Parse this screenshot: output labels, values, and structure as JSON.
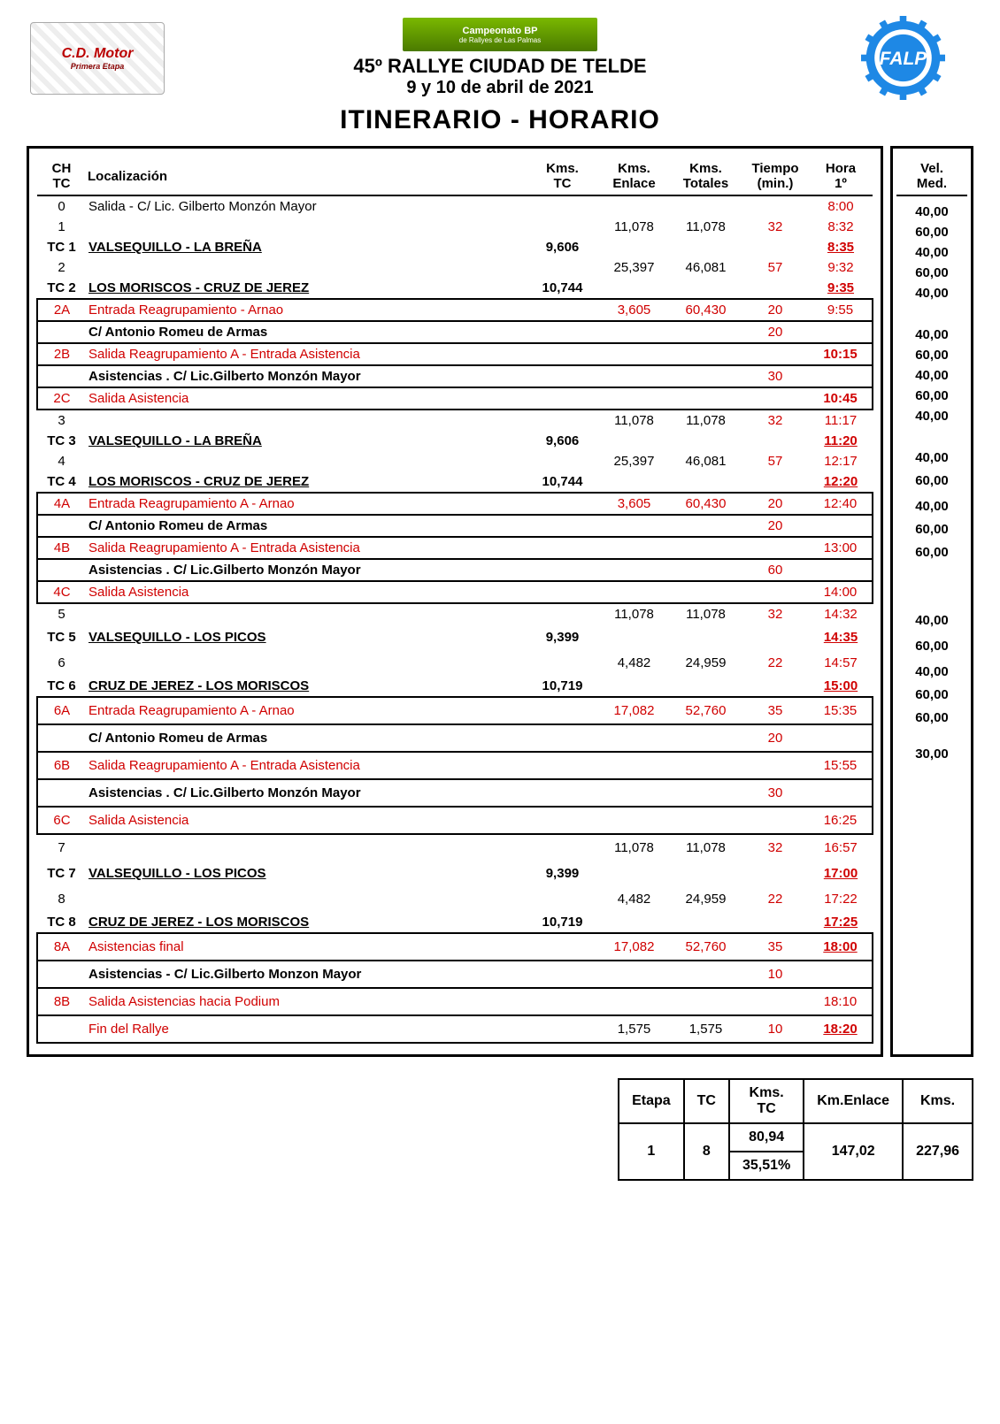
{
  "header": {
    "bp_line1": "Campeonato BP",
    "bp_line2": "de Rallyes de Las Palmas",
    "title1": "45º RALLYE CIUDAD DE TELDE",
    "title2": "9 y 10 de abril de 2021",
    "cdmotor_top": "C.D. Motor",
    "cdmotor_sub": "Primera Etapa",
    "big_title": "ITINERARIO - HORARIO"
  },
  "cols": {
    "ch": "CH TC",
    "loc": "Localización",
    "kmtc": "Kms. TC",
    "kmen": "Kms. Enlace",
    "kmtot": "Kms. Totales",
    "tiempo": "Tiempo (min.)",
    "hora": "Hora 1º",
    "vel": "Vel. Med."
  },
  "rows": [
    {
      "ch": "0",
      "loc": "Salida - C/ Lic. Gilberto Monzón Mayor",
      "hora": "8:00",
      "hora_cls": "red"
    },
    {
      "ch": "1",
      "kmen": "11,078",
      "kmtot": "11,078",
      "tiempo": "32",
      "tiempo_cls": "red",
      "hora": "8:32",
      "hora_cls": "red",
      "vel": "40,00"
    },
    {
      "ch": "TC 1",
      "ch_cls": "bold",
      "loc": "VALSEQUILLO - LA BREÑA",
      "loc_cls": "tc-stage",
      "kmtc": "9,606",
      "kmtc_cls": "bold",
      "hora": "8:35",
      "hora_cls": "red-ul",
      "vel": "60,00"
    },
    {
      "ch": "2",
      "kmen": "25,397",
      "kmtot": "46,081",
      "tiempo": "57",
      "tiempo_cls": "red",
      "hora": "9:32",
      "hora_cls": "red",
      "vel": "40,00"
    },
    {
      "ch": "TC 2",
      "ch_cls": "bold",
      "loc": "LOS MORISCOS - CRUZ DE JEREZ",
      "loc_cls": "tc-stage",
      "kmtc": "10,744",
      "kmtc_cls": "bold",
      "hora": "9:35",
      "hora_cls": "red-ul",
      "vel": "60,00",
      "border_bot": true
    },
    {
      "ch": "2A",
      "ch_cls": "red",
      "loc": "Entrada Reagrupamiento - Arnao",
      "loc_cls": "red",
      "kmen": "3,605",
      "kmen_cls": "red",
      "kmtot": "60,430",
      "kmtot_cls": "red",
      "tiempo": "20",
      "tiempo_cls": "red",
      "hora": "9:55",
      "hora_cls": "red",
      "vel": "40,00",
      "boxed": true,
      "box_top": true,
      "box_bot": true
    },
    {
      "loc": "C/ Antonio Romeu de Armas",
      "loc_cls": "bold",
      "tiempo": "20",
      "tiempo_cls": "red",
      "boxed": true,
      "box_bot": true
    },
    {
      "ch": "2B",
      "ch_cls": "red",
      "loc": "Salida Reagrupamiento A - Entrada Asistencia",
      "loc_cls": "red",
      "hora": "10:15",
      "hora_cls": "red bold",
      "boxed": true,
      "box_bot": true
    },
    {
      "loc": "Asistencias . C/ Lic.Gilberto Monzón Mayor",
      "loc_cls": "bold",
      "tiempo": "30",
      "tiempo_cls": "red",
      "boxed": true,
      "box_bot": true
    },
    {
      "ch": "2C",
      "ch_cls": "red",
      "loc": "Salida Asistencia",
      "loc_cls": "red",
      "hora": "10:45",
      "hora_cls": "red bold",
      "boxed": true,
      "box_bot": true
    },
    {
      "ch": "3",
      "kmen": "11,078",
      "kmtot": "11,078",
      "tiempo": "32",
      "tiempo_cls": "red",
      "hora": "11:17",
      "hora_cls": "red",
      "vel": "40,00"
    },
    {
      "ch": "TC 3",
      "ch_cls": "bold",
      "loc": "VALSEQUILLO - LA BREÑA",
      "loc_cls": "tc-stage",
      "kmtc": "9,606",
      "kmtc_cls": "bold",
      "hora": "11:20",
      "hora_cls": "red-ul",
      "vel": "60,00"
    },
    {
      "ch": "4",
      "kmen": "25,397",
      "kmtot": "46,081",
      "tiempo": "57",
      "tiempo_cls": "red",
      "hora": "12:17",
      "hora_cls": "red",
      "vel": "40,00"
    },
    {
      "ch": "TC 4",
      "ch_cls": "bold",
      "loc": "LOS MORISCOS - CRUZ DE JEREZ",
      "loc_cls": "tc-stage",
      "kmtc": "10,744",
      "kmtc_cls": "bold",
      "hora": "12:20",
      "hora_cls": "red-ul",
      "vel": "60,00",
      "border_bot": true
    },
    {
      "ch": "4A",
      "ch_cls": "red",
      "loc": "Entrada Reagrupamiento A -  Arnao",
      "loc_cls": "red",
      "kmen": "3,605",
      "kmen_cls": "red",
      "kmtot": "60,430",
      "kmtot_cls": "red",
      "tiempo": "20",
      "tiempo_cls": "red",
      "hora": "12:40",
      "hora_cls": "red",
      "vel": "40,00",
      "boxed": true,
      "box_top": true,
      "box_bot": true
    },
    {
      "loc": "C/ Antonio Romeu de Armas",
      "loc_cls": "bold",
      "tiempo": "20",
      "tiempo_cls": "red",
      "boxed": true,
      "box_bot": true
    },
    {
      "ch": "4B",
      "ch_cls": "red",
      "loc": "Salida Reagrupamiento A - Entrada Asistencia",
      "loc_cls": "red",
      "hora": "13:00",
      "hora_cls": "red",
      "boxed": true,
      "box_bot": true
    },
    {
      "loc": "Asistencias . C/ Lic.Gilberto Monzón Mayor",
      "loc_cls": "bold",
      "tiempo": "60",
      "tiempo_cls": "red",
      "boxed": true,
      "box_bot": true
    },
    {
      "ch": "4C",
      "ch_cls": "red",
      "loc": "Salida Asistencia",
      "loc_cls": "red",
      "hora": "14:00",
      "hora_cls": "red",
      "boxed": true,
      "box_bot": true
    },
    {
      "ch": "5",
      "kmen": "11,078",
      "kmtot": "11,078",
      "tiempo": "32",
      "tiempo_cls": "red",
      "hora": "14:32",
      "hora_cls": "red",
      "vel": "40,00"
    },
    {
      "ch": "TC 5",
      "ch_cls": "bold",
      "loc": "VALSEQUILLO - LOS PICOS",
      "loc_cls": "tc-stage",
      "kmtc": "9,399",
      "kmtc_cls": "bold",
      "hora": "14:35",
      "hora_cls": "red-ul",
      "vel": "60,00",
      "pad": true
    },
    {
      "ch": "6",
      "kmen": "4,482",
      "kmtot": "24,959",
      "tiempo": "22",
      "tiempo_cls": "red",
      "hora": "14:57",
      "hora_cls": "red",
      "vel": "40,00",
      "pad": true
    },
    {
      "ch": "TC 6",
      "ch_cls": "bold",
      "loc": "CRUZ DE JEREZ - LOS MORISCOS",
      "loc_cls": "tc-stage",
      "kmtc": "10,719",
      "kmtc_cls": "bold",
      "hora": "15:00",
      "hora_cls": "red-ul",
      "vel": "60,00",
      "border_bot": true
    },
    {
      "ch": "6A",
      "ch_cls": "red",
      "loc": "Entrada Reagrupamiento A -  Arnao",
      "loc_cls": "red",
      "kmen": "17,082",
      "kmen_cls": "red",
      "kmtot": "52,760",
      "kmtot_cls": "red",
      "tiempo": "35",
      "tiempo_cls": "red",
      "hora": "15:35",
      "hora_cls": "red",
      "vel": "60,00",
      "boxed": true,
      "box_top": true,
      "box_bot": true,
      "pad": true
    },
    {
      "loc": "C/ Antonio Romeu de Armas",
      "loc_cls": "bold",
      "tiempo": "20",
      "tiempo_cls": "red",
      "boxed": true,
      "box_bot": true,
      "pad": true
    },
    {
      "ch": "6B",
      "ch_cls": "red",
      "loc": "Salida Reagrupamiento A - Entrada Asistencia",
      "loc_cls": "red",
      "hora": "15:55",
      "hora_cls": "red",
      "boxed": true,
      "box_bot": true,
      "pad": true
    },
    {
      "loc": "Asistencias . C/ Lic.Gilberto Monzón Mayor",
      "loc_cls": "bold",
      "tiempo": "30",
      "tiempo_cls": "red",
      "boxed": true,
      "box_bot": true,
      "pad": true
    },
    {
      "ch": "6C",
      "ch_cls": "red",
      "loc": "Salida Asistencia",
      "loc_cls": "red",
      "hora": "16:25",
      "hora_cls": "red",
      "boxed": true,
      "box_bot": true,
      "pad": true
    },
    {
      "ch": "7",
      "kmen": "11,078",
      "kmtot": "11,078",
      "tiempo": "32",
      "tiempo_cls": "red",
      "hora": "16:57",
      "hora_cls": "red",
      "vel": "40,00",
      "pad": true
    },
    {
      "ch": "TC 7",
      "ch_cls": "bold",
      "loc": "VALSEQUILLO - LOS PICOS",
      "loc_cls": "tc-stage",
      "kmtc": "9,399",
      "kmtc_cls": "bold",
      "hora": "17:00",
      "hora_cls": "red-ul",
      "vel": "60,00",
      "pad": true
    },
    {
      "ch": "8",
      "kmen": "4,482",
      "kmtot": "24,959",
      "tiempo": "22",
      "tiempo_cls": "red",
      "hora": "17:22",
      "hora_cls": "red",
      "vel": "40,00",
      "pad": true
    },
    {
      "ch": "TC 8",
      "ch_cls": "bold",
      "loc": "CRUZ DE JEREZ - LOS MORISCOS",
      "loc_cls": "tc-stage",
      "kmtc": "10,719",
      "kmtc_cls": "bold",
      "hora": "17:25",
      "hora_cls": "red-ul",
      "vel": "60,00",
      "border_bot": true
    },
    {
      "ch": "8A",
      "ch_cls": "red",
      "loc": "Asistencias final",
      "loc_cls": "red",
      "kmen": "17,082",
      "kmen_cls": "red",
      "kmtot": "52,760",
      "kmtot_cls": "red",
      "tiempo": "35",
      "tiempo_cls": "red",
      "hora": "18:00",
      "hora_cls": "red-ul",
      "vel": "60,00",
      "boxed": true,
      "box_top": true,
      "box_bot": true,
      "pad": true
    },
    {
      "loc": "Asistencias - C/ Lic.Gilberto Monzon Mayor",
      "loc_cls": "bold",
      "tiempo": "10",
      "tiempo_cls": "red",
      "boxed": true,
      "box_bot": true,
      "pad": true
    },
    {
      "ch": "8B",
      "ch_cls": "red",
      "loc": "Salida Asistencias hacia Podium",
      "loc_cls": "red",
      "hora": "18:10",
      "hora_cls": "red",
      "vel": "30,00",
      "boxed": true,
      "box_bot": true,
      "pad": true
    },
    {
      "loc": "Fin del Rallye",
      "loc_cls": "red",
      "kmen": "1,575",
      "kmtot": "1,575",
      "tiempo": "10",
      "tiempo_cls": "red",
      "hora": "18:20",
      "hora_cls": "red-ul",
      "boxed": true,
      "box_bot": true,
      "pad": true
    }
  ],
  "summary": {
    "h_etapa": "Etapa",
    "h_tc": "TC",
    "h_kmtc": "Kms. TC",
    "h_kmen": "Km.Enlace",
    "h_kms": "Kms.",
    "etapa": "1",
    "tc": "8",
    "kmtc": "80,94",
    "pct": "35,51%",
    "kmen": "147,02",
    "kms": "227,96"
  }
}
